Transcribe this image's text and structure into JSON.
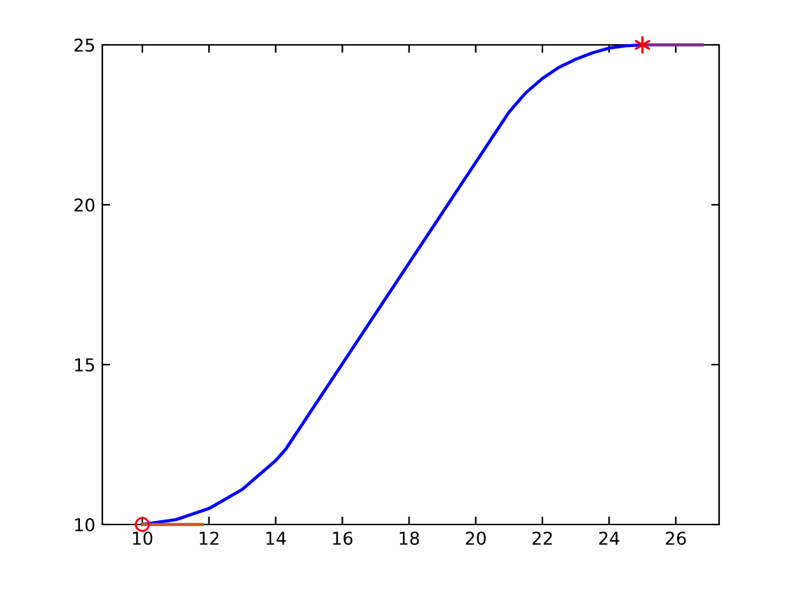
{
  "chart_data": {
    "type": "line",
    "xlim": [
      8.8,
      27.3
    ],
    "ylim": [
      10,
      25
    ],
    "xticks": [
      10,
      12,
      14,
      16,
      18,
      20,
      22,
      24,
      26
    ],
    "yticks": [
      10,
      15,
      20,
      25
    ],
    "grid": false,
    "legend": false,
    "series": [
      {
        "color": "#0000ff",
        "x": [
          10,
          11,
          12,
          13,
          14,
          14.3,
          21,
          21.5,
          22,
          22.5,
          23,
          23.5,
          24,
          24.5,
          25
        ],
        "values": [
          10,
          10.15,
          10.5,
          11.1,
          12,
          12.35,
          22.9,
          23.5,
          23.95,
          24.3,
          24.55,
          24.75,
          24.9,
          24.97,
          25
        ]
      },
      {
        "color": "#d95319",
        "x": [
          10,
          11.8
        ],
        "values": [
          10,
          10
        ]
      },
      {
        "color": "#7e2f8e",
        "x": [
          25,
          26.8
        ],
        "values": [
          25,
          25
        ]
      },
      {
        "type": "scatter",
        "marker": "circle",
        "color": "#ff0000",
        "x": [
          10
        ],
        "values": [
          10
        ]
      },
      {
        "type": "scatter",
        "marker": "cross",
        "color": "#ff0000",
        "x": [
          25
        ],
        "values": [
          25
        ]
      }
    ]
  }
}
